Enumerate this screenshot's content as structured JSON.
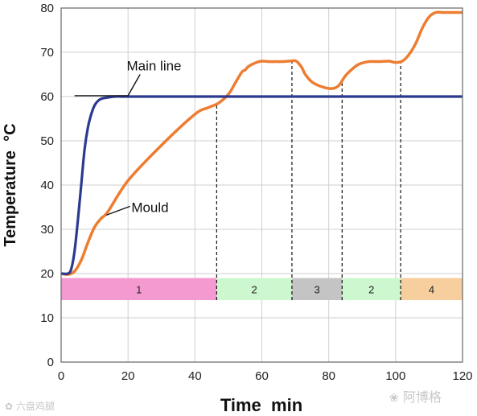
{
  "chart_data": {
    "type": "line",
    "xlabel": "Time  min",
    "ylabel": "Temperature  °C",
    "xlim": [
      0,
      120
    ],
    "ylim": [
      0,
      80
    ],
    "x_ticks": [
      0,
      20,
      40,
      60,
      80,
      100,
      120
    ],
    "y_ticks": [
      0,
      10,
      20,
      30,
      40,
      50,
      60,
      70,
      80
    ],
    "grid": true,
    "series": [
      {
        "name": "Main line",
        "color": "#2b3a8f",
        "x": [
          0,
          2,
          3,
          4,
          5,
          6,
          7,
          8,
          9,
          10,
          11,
          12,
          14,
          16,
          18,
          20,
          30,
          40,
          60,
          80,
          100,
          120
        ],
        "y": [
          20,
          20,
          21,
          25,
          32,
          40,
          48,
          53,
          56,
          58,
          59,
          59.5,
          59.8,
          60,
          60,
          60,
          60,
          60,
          60,
          60,
          60,
          60
        ]
      },
      {
        "name": "Mould",
        "color": "#ed7d31",
        "x": [
          0,
          2,
          4,
          6,
          8,
          10,
          12,
          14,
          20,
          30,
          40,
          44,
          47,
          50,
          52,
          54,
          55,
          56,
          58,
          60,
          62,
          64,
          66,
          68,
          70,
          71,
          72,
          73,
          75,
          78,
          81,
          83,
          85,
          87,
          89,
          92,
          95,
          98,
          100,
          102,
          104,
          106,
          108,
          110,
          112,
          114,
          116,
          118,
          120
        ],
        "y": [
          20,
          19.8,
          20.5,
          23,
          27,
          30.5,
          32.5,
          34,
          41,
          49,
          56,
          57.5,
          58.5,
          60.5,
          63,
          65.5,
          66,
          66.8,
          67.6,
          68,
          67.9,
          67.9,
          67.9,
          68,
          68.1,
          67.5,
          66.5,
          65,
          63.3,
          62.2,
          61.8,
          62.5,
          64.7,
          66.2,
          67.3,
          67.9,
          67.9,
          68,
          67.7,
          68,
          69.5,
          72,
          75.5,
          78,
          79,
          79,
          79,
          79,
          79
        ]
      }
    ],
    "annotations": [
      {
        "text": "Main line",
        "x": 22,
        "y": 67
      },
      {
        "text": "Mould",
        "x": 21,
        "y": 35
      }
    ],
    "phase_boundaries": [
      46.5,
      69,
      84,
      101.5
    ],
    "phases": [
      {
        "label": "1",
        "x_start": 0,
        "x_end": 46.5,
        "color": "#f49ad0"
      },
      {
        "label": "2",
        "x_start": 46.5,
        "x_end": 69,
        "color": "#ccf7cf"
      },
      {
        "label": "3",
        "x_start": 69,
        "x_end": 84,
        "color": "#c4c4c4"
      },
      {
        "label": "2",
        "x_start": 84,
        "x_end": 101.5,
        "color": "#ccf7cf"
      },
      {
        "label": "4",
        "x_start": 101.5,
        "x_end": 120,
        "color": "#f7cf9e"
      }
    ],
    "phase_band_range": [
      14,
      19
    ]
  },
  "watermarks": {
    "left": "六盘鸡腿",
    "right": "阿博格"
  }
}
